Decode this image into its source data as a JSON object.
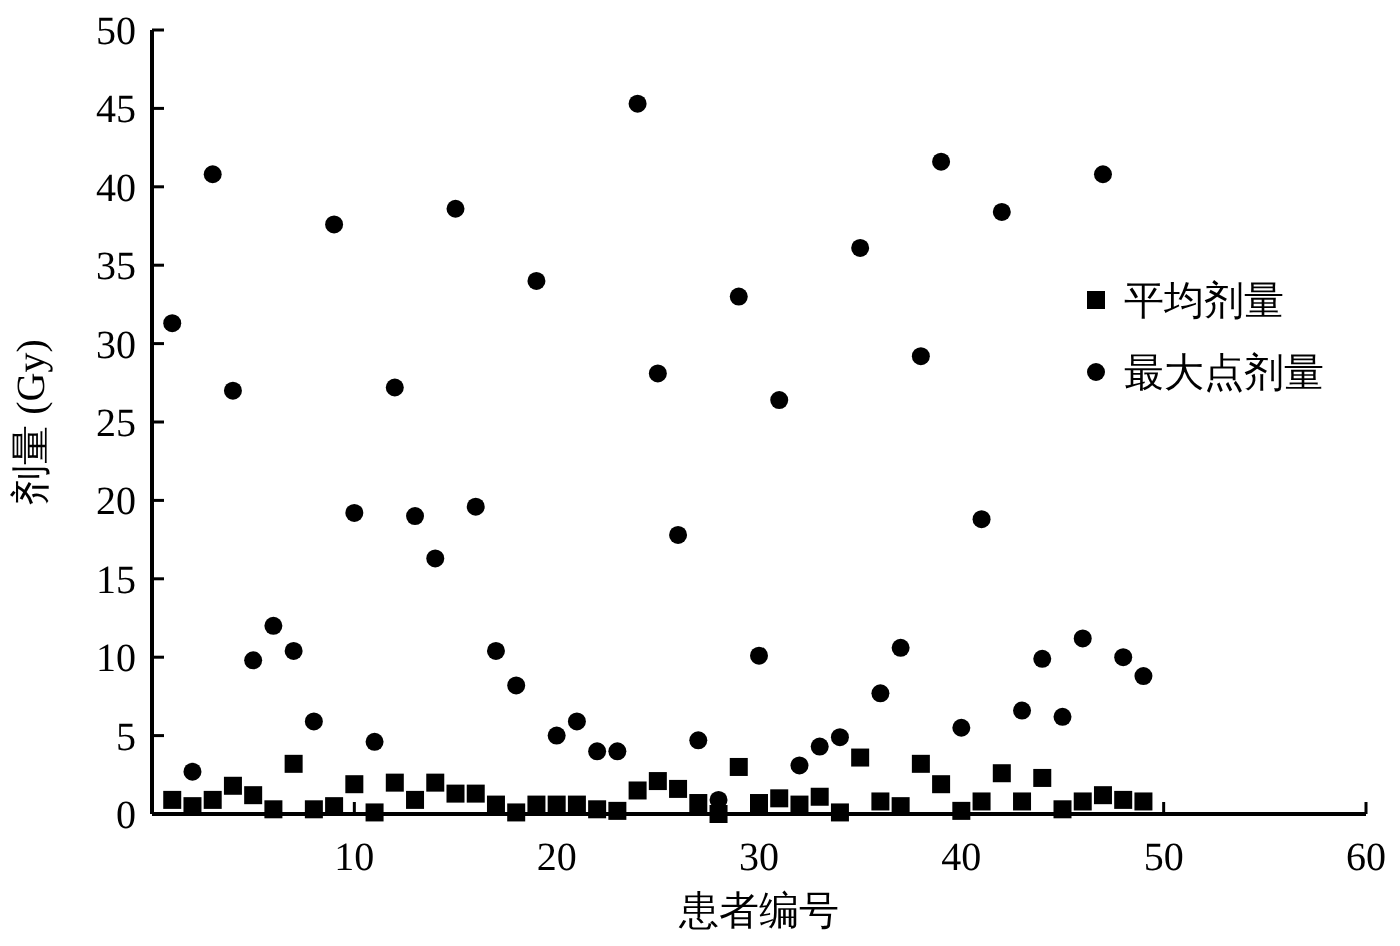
{
  "chart_data": {
    "type": "scatter",
    "xlabel": "患者编号",
    "ylabel": "剂量 (Gy)",
    "x": [
      1,
      2,
      3,
      4,
      5,
      6,
      7,
      8,
      9,
      10,
      11,
      12,
      13,
      14,
      15,
      16,
      17,
      18,
      19,
      20,
      21,
      22,
      23,
      24,
      25,
      26,
      27,
      28,
      29,
      30,
      31,
      32,
      33,
      34,
      35,
      36,
      37,
      38,
      39,
      40,
      41,
      42,
      43,
      44,
      45,
      46,
      47,
      48,
      49
    ],
    "series": [
      {
        "name": "平均剂量",
        "color": "#000000",
        "marker": "square",
        "values": [
          0.9,
          0.5,
          0.9,
          1.8,
          1.2,
          0.3,
          3.2,
          0.3,
          0.5,
          1.9,
          0.1,
          2.0,
          0.9,
          2.0,
          1.3,
          1.3,
          0.6,
          0.1,
          0.6,
          0.6,
          0.6,
          0.3,
          0.2,
          1.5,
          2.1,
          1.6,
          0.7,
          0,
          3.0,
          0.7,
          1.0,
          0.6,
          1.1,
          0.1,
          3.6,
          0.8,
          0.5,
          3.2,
          1.9,
          0.2,
          0.8,
          2.6,
          0.8,
          2.3,
          0.3,
          0.8,
          1.2,
          0.9,
          0.8
        ]
      },
      {
        "name": "最大点剂量",
        "color": "#000000",
        "marker": "circle",
        "values": [
          31.3,
          2.7,
          40.8,
          27,
          9.8,
          12,
          10.4,
          5.9,
          37.6,
          19.2,
          4.6,
          27.2,
          19,
          16.3,
          38.6,
          19.6,
          10.4,
          8.2,
          34,
          5,
          5.9,
          4,
          4,
          45.3,
          28.1,
          17.8,
          4.7,
          0.9,
          33,
          10.1,
          26.4,
          3.1,
          4.3,
          4.9,
          36.1,
          7.7,
          10.6,
          29.2,
          41.6,
          5.5,
          18.8,
          38.4,
          6.6,
          9.9,
          6.2,
          11.2,
          40.8,
          10,
          8.8
        ]
      }
    ],
    "xlim": [
      0,
      60
    ],
    "xticks": [
      10,
      20,
      30,
      40,
      50,
      60
    ],
    "ylim": [
      0,
      50
    ],
    "yticks": [
      0,
      5,
      10,
      15,
      20,
      25,
      30,
      35,
      40,
      45,
      50
    ],
    "grid": false,
    "legend": "right"
  }
}
